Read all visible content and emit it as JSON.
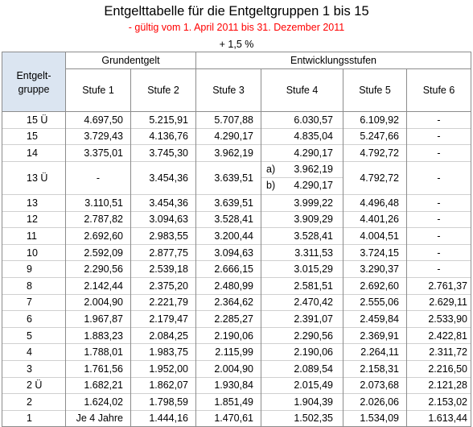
{
  "title": "Entgelttabelle für die Entgeltgruppen 1 bis 15",
  "subtitle": "- gültig vom 1. April 2011 bis 31. Dezember 2011",
  "increase": "+ 1,5 %",
  "headers": {
    "entgeltgruppe": "Entgelt-\ngruppe",
    "grundentgelt": "Grundentgelt",
    "entwicklungsstufen": "Entwicklungsstufen",
    "stufe1": "Stufe 1",
    "stufe2": "Stufe 2",
    "stufe3": "Stufe 3",
    "stufe4": "Stufe 4",
    "stufe5": "Stufe 5",
    "stufe6": "Stufe 6"
  },
  "rows": [
    {
      "eg": "15 Ü",
      "s1": "4.697,50",
      "s2": "5.215,91",
      "s3": "5.707,88",
      "s4": "6.030,57",
      "s5": "6.109,92",
      "s6": "-"
    },
    {
      "eg": "15",
      "s1": "3.729,43",
      "s2": "4.136,76",
      "s3": "4.290,17",
      "s4": "4.835,04",
      "s5": "5.247,66",
      "s6": "-"
    },
    {
      "eg": "14",
      "s1": "3.375,01",
      "s2": "3.745,30",
      "s3": "3.962,19",
      "s4": "4.290,17",
      "s5": "4.792,72",
      "s6": "-"
    },
    {
      "eg": "13 Ü",
      "s1": "-",
      "s2": "3.454,36",
      "s3": "3.639,51",
      "s4a_label": "a)",
      "s4a": "3.962,19",
      "s4b_label": "b)",
      "s4b": "4.290,17",
      "s5": "4.792,72",
      "s6": "-"
    },
    {
      "eg": "13",
      "s1": "3.110,51",
      "s2": "3.454,36",
      "s3": "3.639,51",
      "s4": "3.999,22",
      "s5": "4.496,48",
      "s6": "-"
    },
    {
      "eg": "12",
      "s1": "2.787,82",
      "s2": "3.094,63",
      "s3": "3.528,41",
      "s4": "3.909,29",
      "s5": "4.401,26",
      "s6": "-"
    },
    {
      "eg": "11",
      "s1": "2.692,60",
      "s2": "2.983,55",
      "s3": "3.200,44",
      "s4": "3.528,41",
      "s5": "4.004,51",
      "s6": "-"
    },
    {
      "eg": "10",
      "s1": "2.592,09",
      "s2": "2.877,75",
      "s3": "3.094,63",
      "s4": "3.311,53",
      "s5": "3.724,15",
      "s6": "-"
    },
    {
      "eg": "9",
      "s1": "2.290,56",
      "s2": "2.539,18",
      "s3": "2.666,15",
      "s4": "3.015,29",
      "s5": "3.290,37",
      "s6": "-"
    },
    {
      "eg": "8",
      "s1": "2.142,44",
      "s2": "2.375,20",
      "s3": "2.480,99",
      "s4": "2.581,51",
      "s5": "2.692,60",
      "s6": "2.761,37"
    },
    {
      "eg": "7",
      "s1": "2.004,90",
      "s2": "2.221,79",
      "s3": "2.364,62",
      "s4": "2.470,42",
      "s5": "2.555,06",
      "s6": "2.629,11"
    },
    {
      "eg": "6",
      "s1": "1.967,87",
      "s2": "2.179,47",
      "s3": "2.285,27",
      "s4": "2.391,07",
      "s5": "2.459,84",
      "s6": "2.533,90"
    },
    {
      "eg": "5",
      "s1": "1.883,23",
      "s2": "2.084,25",
      "s3": "2.190,06",
      "s4": "2.290,56",
      "s5": "2.369,91",
      "s6": "2.422,81"
    },
    {
      "eg": "4",
      "s1": "1.788,01",
      "s2": "1.983,75",
      "s3": "2.115,99",
      "s4": "2.190,06",
      "s5": "2.264,11",
      "s6": "2.311,72"
    },
    {
      "eg": "3",
      "s1": "1.761,56",
      "s2": "1.952,00",
      "s3": "2.004,90",
      "s4": "2.089,54",
      "s5": "2.158,31",
      "s6": "2.216,50"
    },
    {
      "eg": "2 Ü",
      "s1": "1.682,21",
      "s2": "1.862,07",
      "s3": "1.930,84",
      "s4": "2.015,49",
      "s5": "2.073,68",
      "s6": "2.121,28"
    },
    {
      "eg": "2",
      "s1": "1.624,02",
      "s2": "1.798,59",
      "s3": "1.851,49",
      "s4": "1.904,39",
      "s5": "2.026,06",
      "s6": "2.153,02"
    },
    {
      "eg": "1",
      "s1": "Je 4 Jahre",
      "s2": "1.444,16",
      "s3": "1.470,61",
      "s4": "1.502,35",
      "s5": "1.534,09",
      "s6": "1.613,44"
    }
  ]
}
